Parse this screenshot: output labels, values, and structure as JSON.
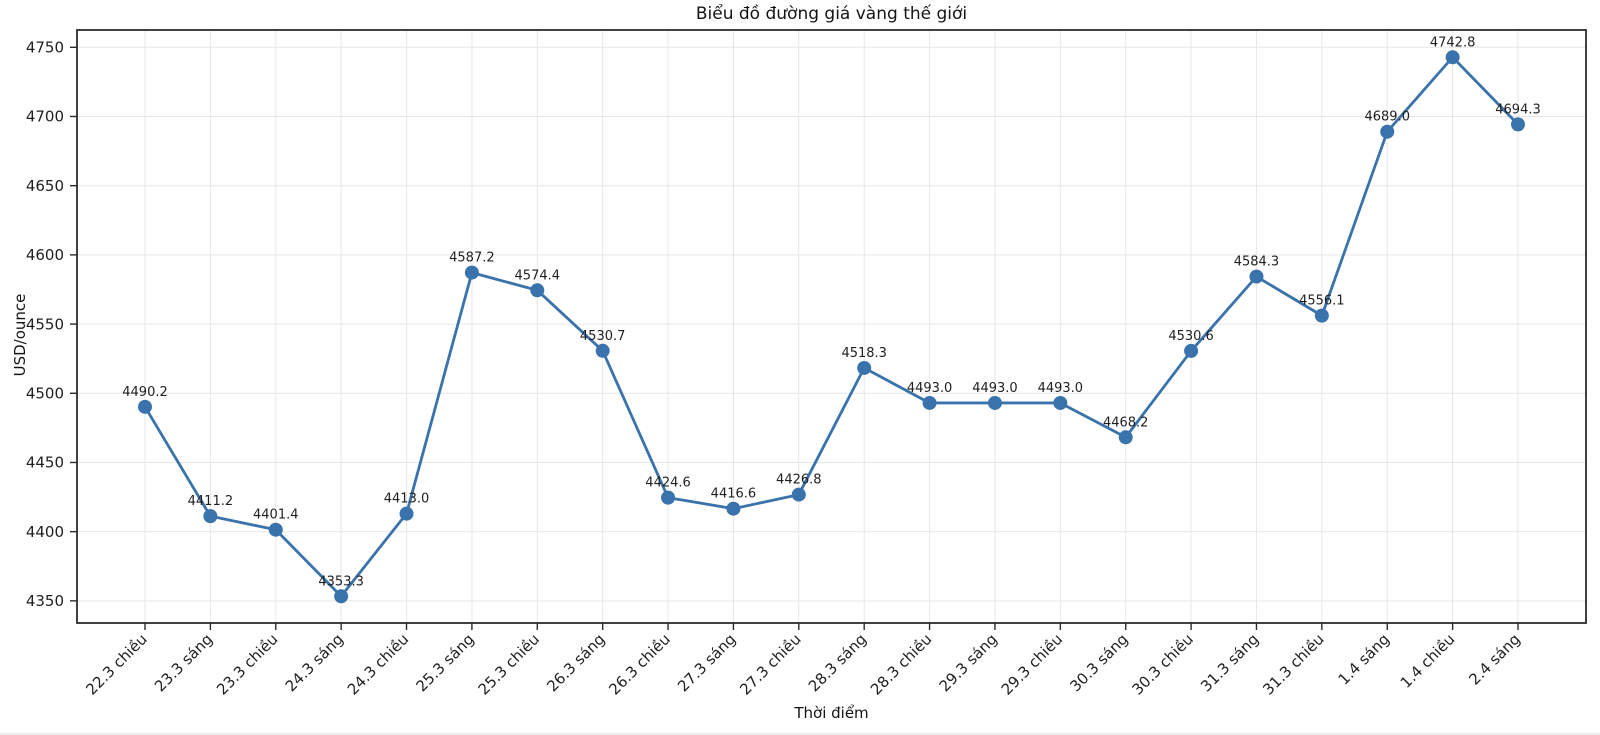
{
  "chart_data": {
    "type": "line",
    "title": "Biểu đồ đường giá vàng thế giới",
    "xlabel": "Thời điểm",
    "ylabel": "USD/ounce",
    "categories": [
      "22.3 chiều",
      "23.3 sáng",
      "23.3 chiều",
      "24.3 sáng",
      "24.3 chiều",
      "25.3 sáng",
      "25.3 chiều",
      "26.3 sáng",
      "26.3 chiều",
      "27.3 sáng",
      "27.3 chiều",
      "28.3 sáng",
      "28.3 chiều",
      "29.3 sáng",
      "29.3 chiều",
      "30.3 sáng",
      "30.3 chiều",
      "31.3 sáng",
      "31.3 chiều",
      "1.4 sáng",
      "1.4 chiều",
      "2.4 sáng"
    ],
    "values": [
      4490.2,
      4411.2,
      4401.4,
      4353.3,
      4413.0,
      4587.2,
      4574.4,
      4530.7,
      4424.6,
      4416.6,
      4426.8,
      4518.3,
      4493.0,
      4493.0,
      4493.0,
      4468.2,
      4530.6,
      4584.3,
      4556.1,
      4689.0,
      4742.8,
      4694.3
    ],
    "yticks": [
      4350,
      4400,
      4450,
      4500,
      4550,
      4600,
      4650,
      4700,
      4750
    ],
    "ylim": [
      4334,
      4762.5
    ],
    "x_tick_rotation": 45,
    "grid": true,
    "legend": "none",
    "line_color": "#3a73ab",
    "grid_color": "#e7e7e7",
    "spine_color": "#2b2b2b",
    "text_color": "#1f1f1f",
    "point_labels_shown": true
  }
}
